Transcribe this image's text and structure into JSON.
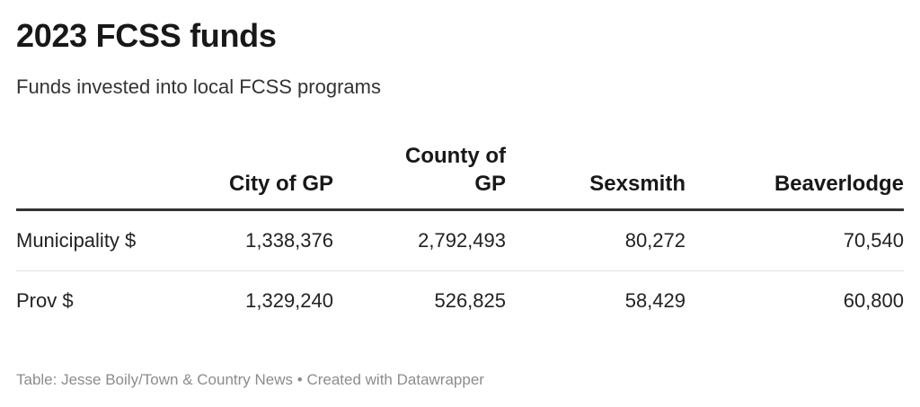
{
  "title": "2023 FCSS funds",
  "subtitle": "Funds invested into local FCSS programs",
  "footer": {
    "source": "Table: Jesse Boily/Town & Country News",
    "separator": "•",
    "credit": "Created with Datawrapper"
  },
  "chart_data": {
    "type": "table",
    "columns": [
      "",
      "City of GP",
      "County of GP",
      "Sexsmith",
      "Beaverlodge"
    ],
    "rows": [
      {
        "label": "Municipality $",
        "values": [
          "1,338,376",
          "2,792,493",
          "80,272",
          "70,540"
        ]
      },
      {
        "label": "Prov $",
        "values": [
          "1,329,240",
          "526,825",
          "58,429",
          "60,800"
        ]
      }
    ]
  },
  "colors": {
    "header_rule": "#333333",
    "row_rule": "#e2e2e2",
    "footer_text": "#8c8c8c"
  }
}
